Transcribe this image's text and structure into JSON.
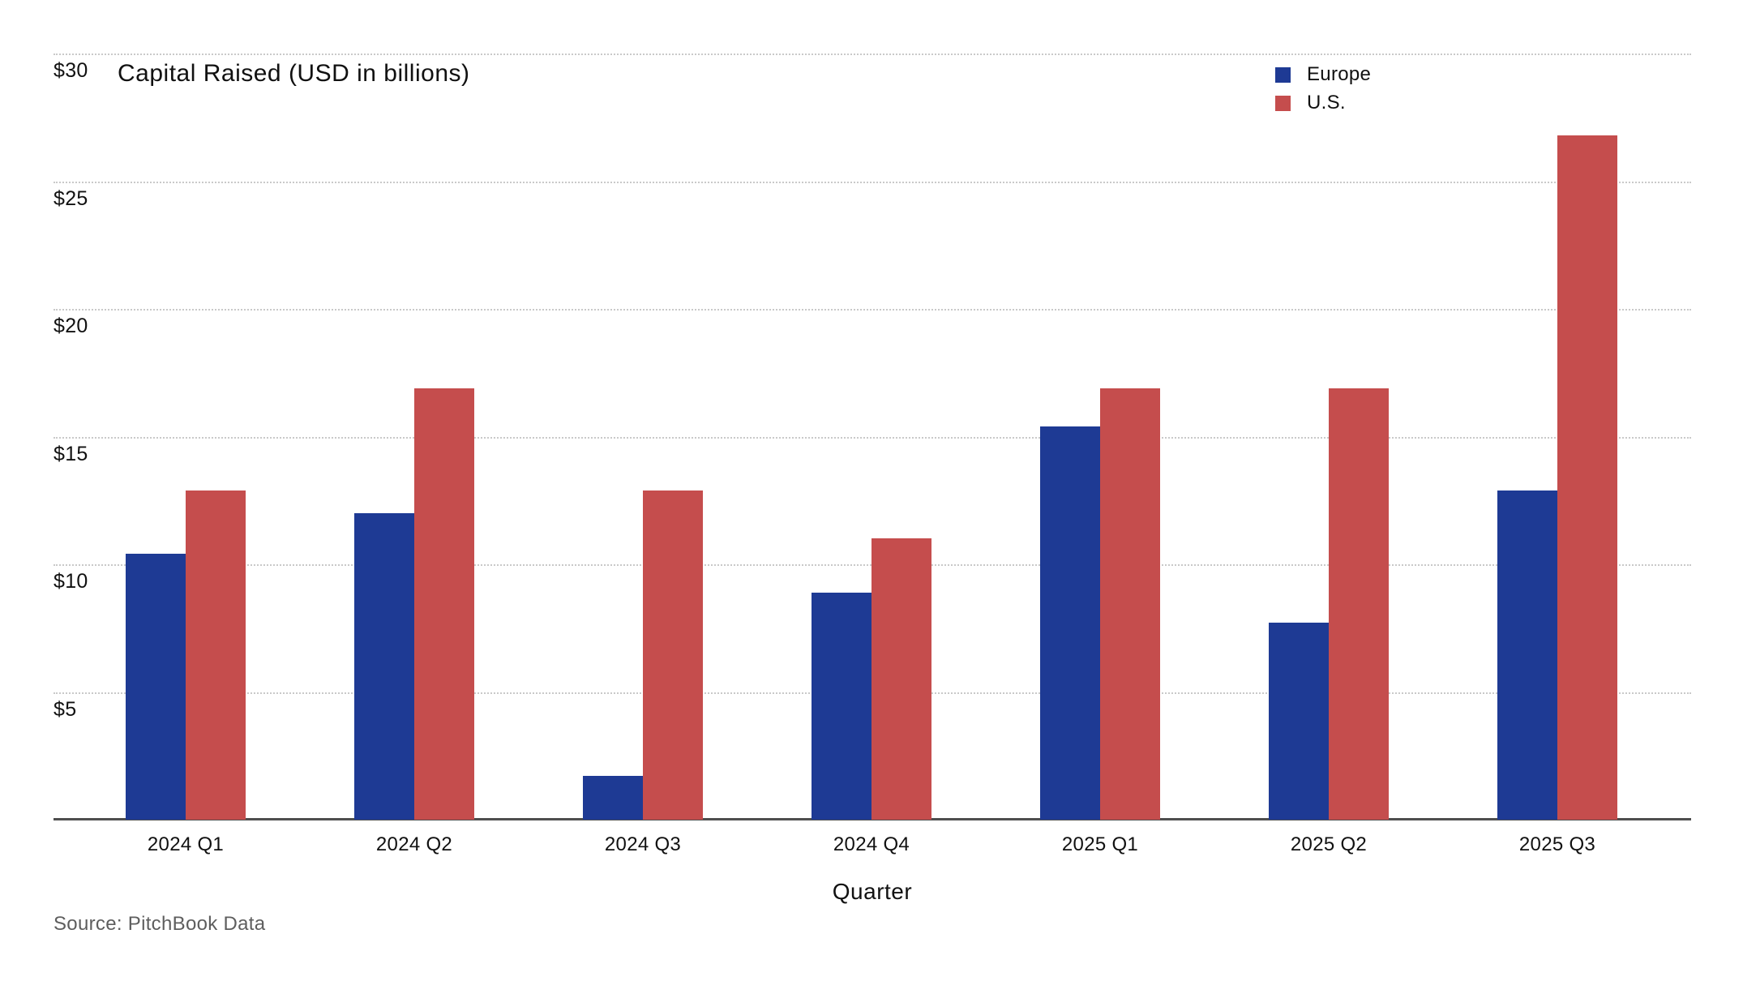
{
  "chart_data": {
    "type": "bar",
    "title": "Capital Raised (USD in billions)",
    "xlabel": "Quarter",
    "source": "Source: PitchBook Data",
    "categories": [
      "2024 Q1",
      "2024 Q2",
      "2024 Q3",
      "2024 Q4",
      "2025 Q1",
      "2025 Q2",
      "2025 Q3"
    ],
    "series": [
      {
        "name": "Europe",
        "color": "#1e3a94",
        "values": [
          10.4,
          12.0,
          1.7,
          8.9,
          15.4,
          7.7,
          12.9
        ]
      },
      {
        "name": "U.S.",
        "color": "#c54d4d",
        "values": [
          12.9,
          16.9,
          12.9,
          11.0,
          16.9,
          16.9,
          26.8
        ]
      }
    ],
    "ylim": [
      0,
      30
    ],
    "ytick_labels": [
      "$30",
      "$25",
      "$20",
      "$15",
      "$10",
      "$5"
    ],
    "grid": "horizontal-dotted",
    "legend_position": "top-right",
    "colors": {
      "gridline": "#c9c9c9",
      "axis_line": "#4f4f4f",
      "text": "#111111",
      "source_text": "#5e5e5e"
    }
  }
}
